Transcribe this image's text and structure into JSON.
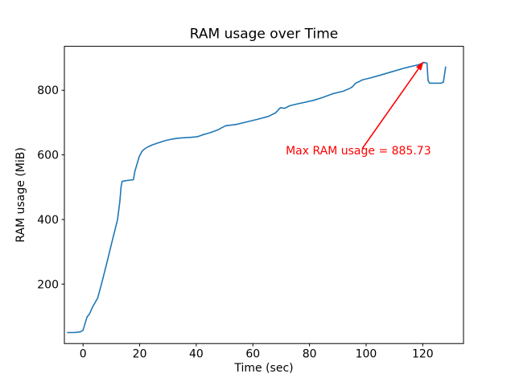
{
  "chart_data": {
    "type": "line",
    "title": "RAM usage over Time",
    "xlabel": "Time (sec)",
    "ylabel": "RAM usage (MiB)",
    "xlim": [
      -6.6,
      134.4
    ],
    "ylim": [
      16,
      936
    ],
    "x_ticks": [
      0,
      20,
      40,
      60,
      80,
      100,
      120
    ],
    "y_ticks": [
      200,
      400,
      600,
      800
    ],
    "grid": false,
    "legend_position": "none",
    "line_color": "#1f77b4",
    "series": [
      {
        "name": "RAM usage",
        "color": "#1f77b4",
        "points": [
          [
            -5.5,
            50
          ],
          [
            -3,
            50
          ],
          [
            -1,
            52
          ],
          [
            0,
            57
          ],
          [
            0.7,
            78
          ],
          [
            1.4,
            98
          ],
          [
            2.3,
            108
          ],
          [
            3.4,
            130
          ],
          [
            4.2,
            142
          ],
          [
            5.2,
            158
          ],
          [
            6.5,
            200
          ],
          [
            8.4,
            266
          ],
          [
            10.3,
            333
          ],
          [
            12.2,
            400
          ],
          [
            13.0,
            455
          ],
          [
            13.4,
            500
          ],
          [
            13.8,
            518
          ],
          [
            15.0,
            520
          ],
          [
            17.8,
            523
          ],
          [
            18.3,
            549
          ],
          [
            19.0,
            570
          ],
          [
            19.8,
            594
          ],
          [
            20.8,
            611
          ],
          [
            21.8,
            619
          ],
          [
            23.0,
            625
          ],
          [
            24.5,
            631
          ],
          [
            26.5,
            637
          ],
          [
            29.0,
            644
          ],
          [
            31.5,
            649
          ],
          [
            34.0,
            652
          ],
          [
            37.5,
            654
          ],
          [
            40.3,
            656
          ],
          [
            42.2,
            662
          ],
          [
            45.0,
            669
          ],
          [
            47.8,
            678
          ],
          [
            48.8,
            683
          ],
          [
            50.3,
            690
          ],
          [
            54.0,
            694
          ],
          [
            57.8,
            702
          ],
          [
            61.6,
            710
          ],
          [
            65.4,
            719
          ],
          [
            68.0,
            730
          ],
          [
            69.7,
            746
          ],
          [
            71.2,
            744
          ],
          [
            73.0,
            752
          ],
          [
            75.8,
            758
          ],
          [
            78.5,
            763
          ],
          [
            81.5,
            769
          ],
          [
            84.4,
            777
          ],
          [
            88.1,
            789
          ],
          [
            91.9,
            797
          ],
          [
            94.3,
            806
          ],
          [
            95.2,
            811
          ],
          [
            96.3,
            822
          ],
          [
            97.6,
            827
          ],
          [
            98.6,
            832
          ],
          [
            101.4,
            838
          ],
          [
            104.3,
            845
          ],
          [
            109.0,
            857
          ],
          [
            113.7,
            869
          ],
          [
            118.5,
            879
          ],
          [
            120.4,
            885.73
          ],
          [
            121.5,
            884
          ],
          [
            121.9,
            830
          ],
          [
            122.4,
            822
          ],
          [
            126.5,
            822
          ],
          [
            127.3,
            825
          ],
          [
            128.1,
            872
          ]
        ]
      }
    ],
    "annotation": {
      "text": "Max RAM usage = 885.73",
      "max_value": 885.73,
      "color": "#ff0000",
      "text_xy": [
        71.6,
        601.5
      ],
      "arrow_start_xy": [
        98.6,
        619
      ],
      "arrow_tip_xy": [
        120.3,
        889
      ]
    }
  }
}
